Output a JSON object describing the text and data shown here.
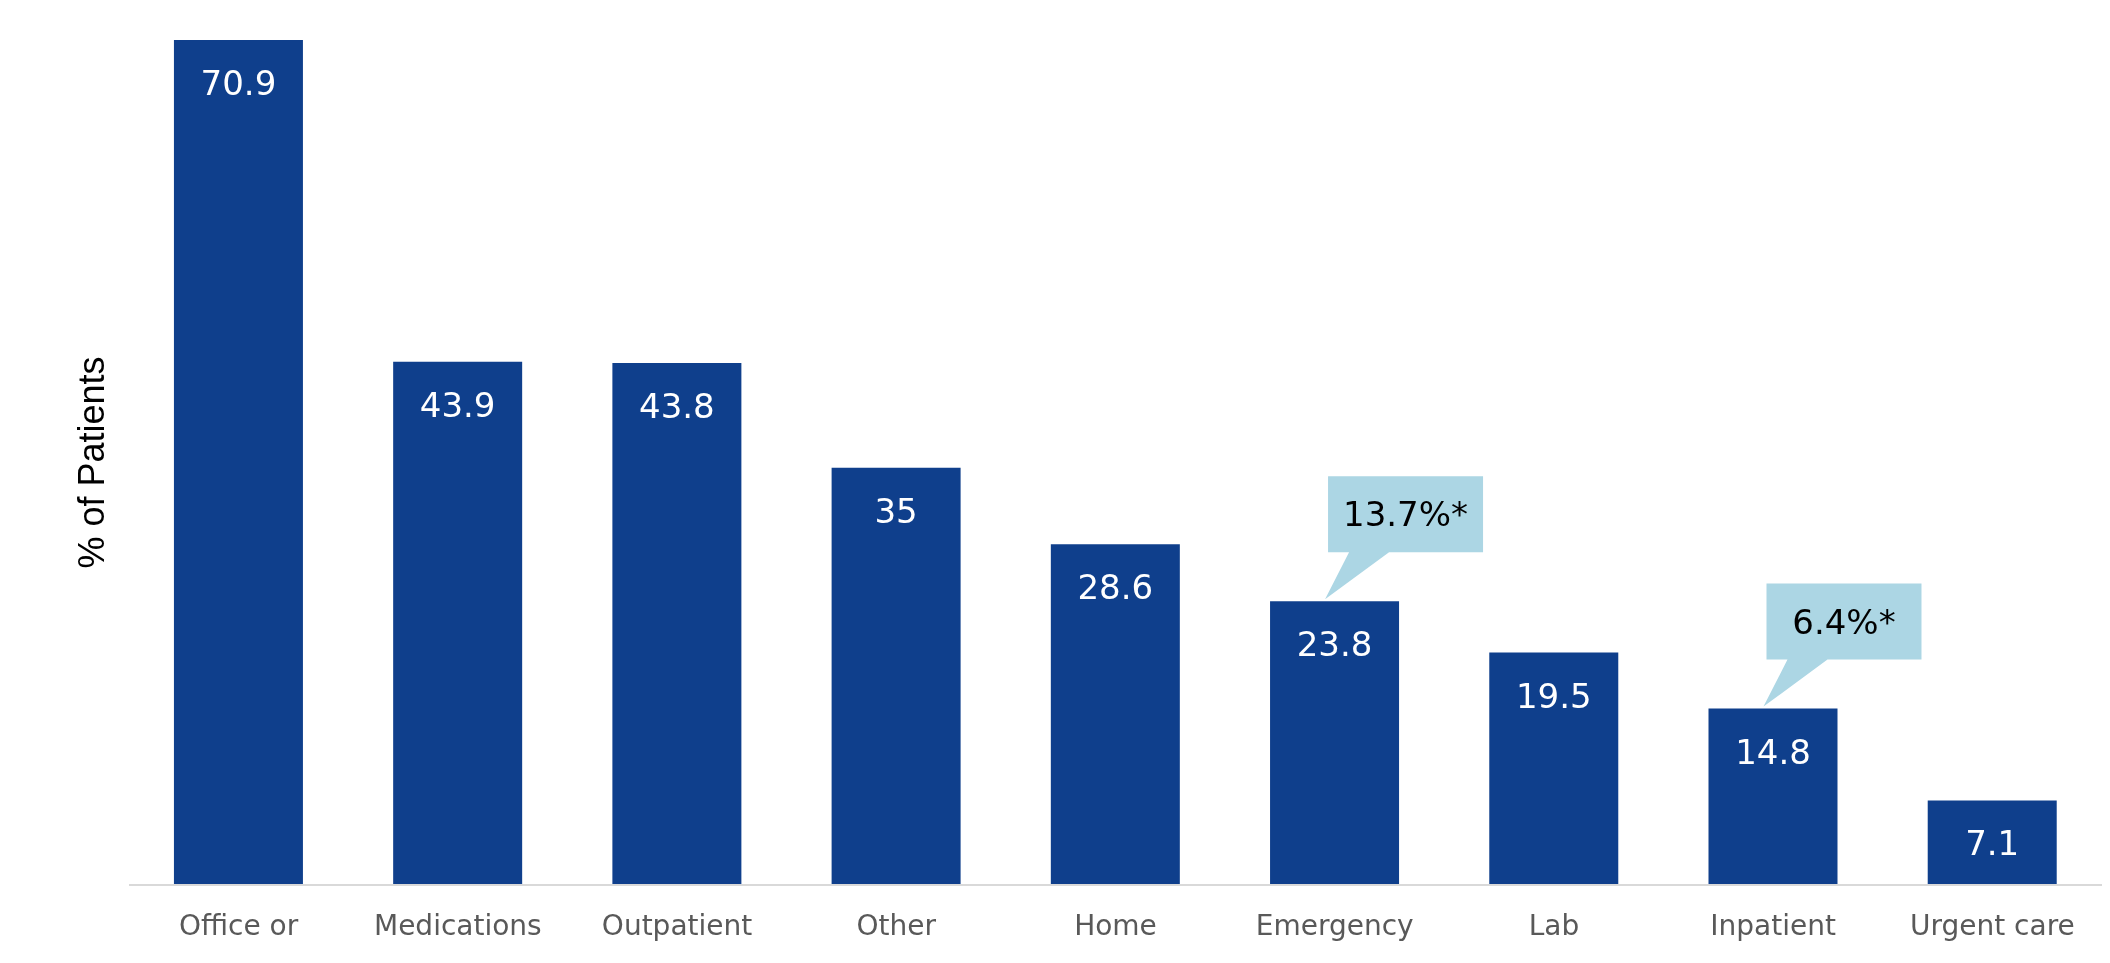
{
  "chart_data": {
    "type": "bar",
    "ylabel": "% of Patients",
    "categories": [
      "Office or",
      "Medications",
      "Outpatient",
      "Other",
      "Home",
      "Emergency",
      "Lab",
      "Inpatient",
      "Urgent care"
    ],
    "values": [
      70.9,
      43.9,
      43.8,
      35,
      28.6,
      23.8,
      19.5,
      14.8,
      7.1
    ],
    "color": "#0f3f8c",
    "data_labels": true,
    "grid": false,
    "legend": false,
    "annotations": [
      {
        "text": "13.7%*",
        "x": "Emergency",
        "y": 23.8
      },
      {
        "text": "6.4%*",
        "x": "Inpatient",
        "y": 14.8
      }
    ]
  }
}
